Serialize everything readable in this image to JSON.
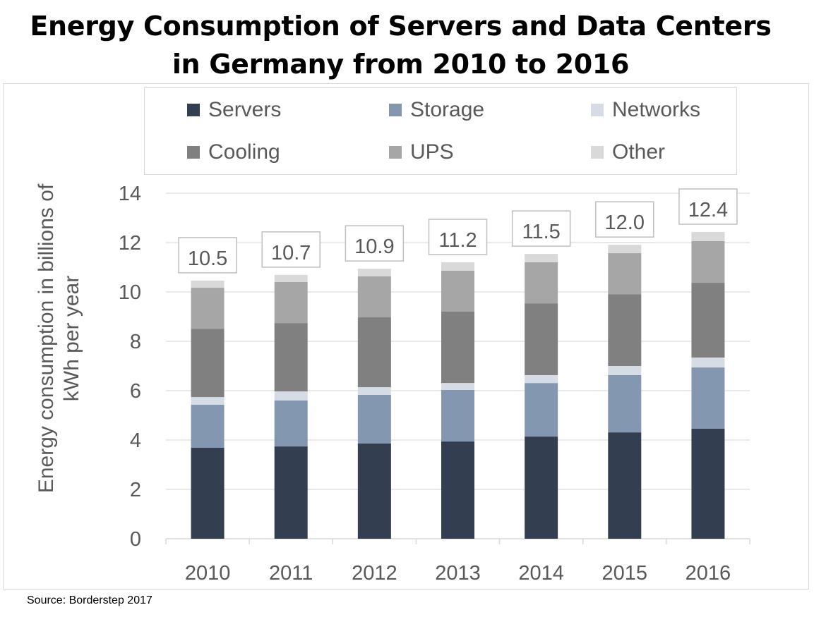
{
  "chart_data": {
    "type": "bar",
    "stacked": true,
    "title": "Energy Consumption of Servers and Data Centers in Germany from 2010 to 2016",
    "title_lines": [
      "Energy Consumption of Servers and Data Centers",
      "in Germany from 2010 to 2016"
    ],
    "xlabel": "",
    "ylabel": "Energy consumption in billions of kWh per year",
    "ylabel_lines": [
      "Energy consumption in billions of",
      "kWh per year"
    ],
    "ylim": [
      0,
      14
    ],
    "yticks": [
      0,
      2,
      4,
      6,
      8,
      10,
      12,
      14
    ],
    "grid": true,
    "legend_position": "top",
    "categories": [
      "2010",
      "2011",
      "2012",
      "2013",
      "2014",
      "2015",
      "2016"
    ],
    "series": [
      {
        "name": "Servers",
        "color": "#333f50",
        "values": [
          3.69,
          3.74,
          3.86,
          3.94,
          4.14,
          4.31,
          4.46
        ]
      },
      {
        "name": "Storage",
        "color": "#8497b0",
        "values": [
          1.74,
          1.86,
          1.97,
          2.09,
          2.17,
          2.32,
          2.48
        ]
      },
      {
        "name": "Networks",
        "color": "#d6dce5",
        "values": [
          0.31,
          0.37,
          0.31,
          0.28,
          0.32,
          0.37,
          0.4
        ]
      },
      {
        "name": "Cooling",
        "color": "#808080",
        "values": [
          2.77,
          2.77,
          2.83,
          2.89,
          2.91,
          2.91,
          3.03
        ]
      },
      {
        "name": "UPS",
        "color": "#a6a6a6",
        "values": [
          1.66,
          1.66,
          1.66,
          1.66,
          1.66,
          1.66,
          1.69
        ]
      },
      {
        "name": "Other",
        "color": "#d9d9d9",
        "values": [
          0.29,
          0.29,
          0.31,
          0.34,
          0.34,
          0.34,
          0.37
        ]
      }
    ],
    "totals": [
      10.5,
      10.7,
      10.9,
      11.2,
      11.5,
      12.0,
      12.4
    ],
    "total_labels": [
      "10.5",
      "10.7",
      "10.9",
      "11.2",
      "11.5",
      "12.0",
      "12.4"
    ]
  },
  "legend": [
    {
      "label": "Servers",
      "color": "#333f50"
    },
    {
      "label": "Storage",
      "color": "#8497b0"
    },
    {
      "label": "Networks",
      "color": "#d6dce5"
    },
    {
      "label": "Cooling",
      "color": "#808080"
    },
    {
      "label": "UPS",
      "color": "#a6a6a6"
    },
    {
      "label": "Other",
      "color": "#d9d9d9"
    }
  ],
  "source": "Source: Borderstep 2017"
}
